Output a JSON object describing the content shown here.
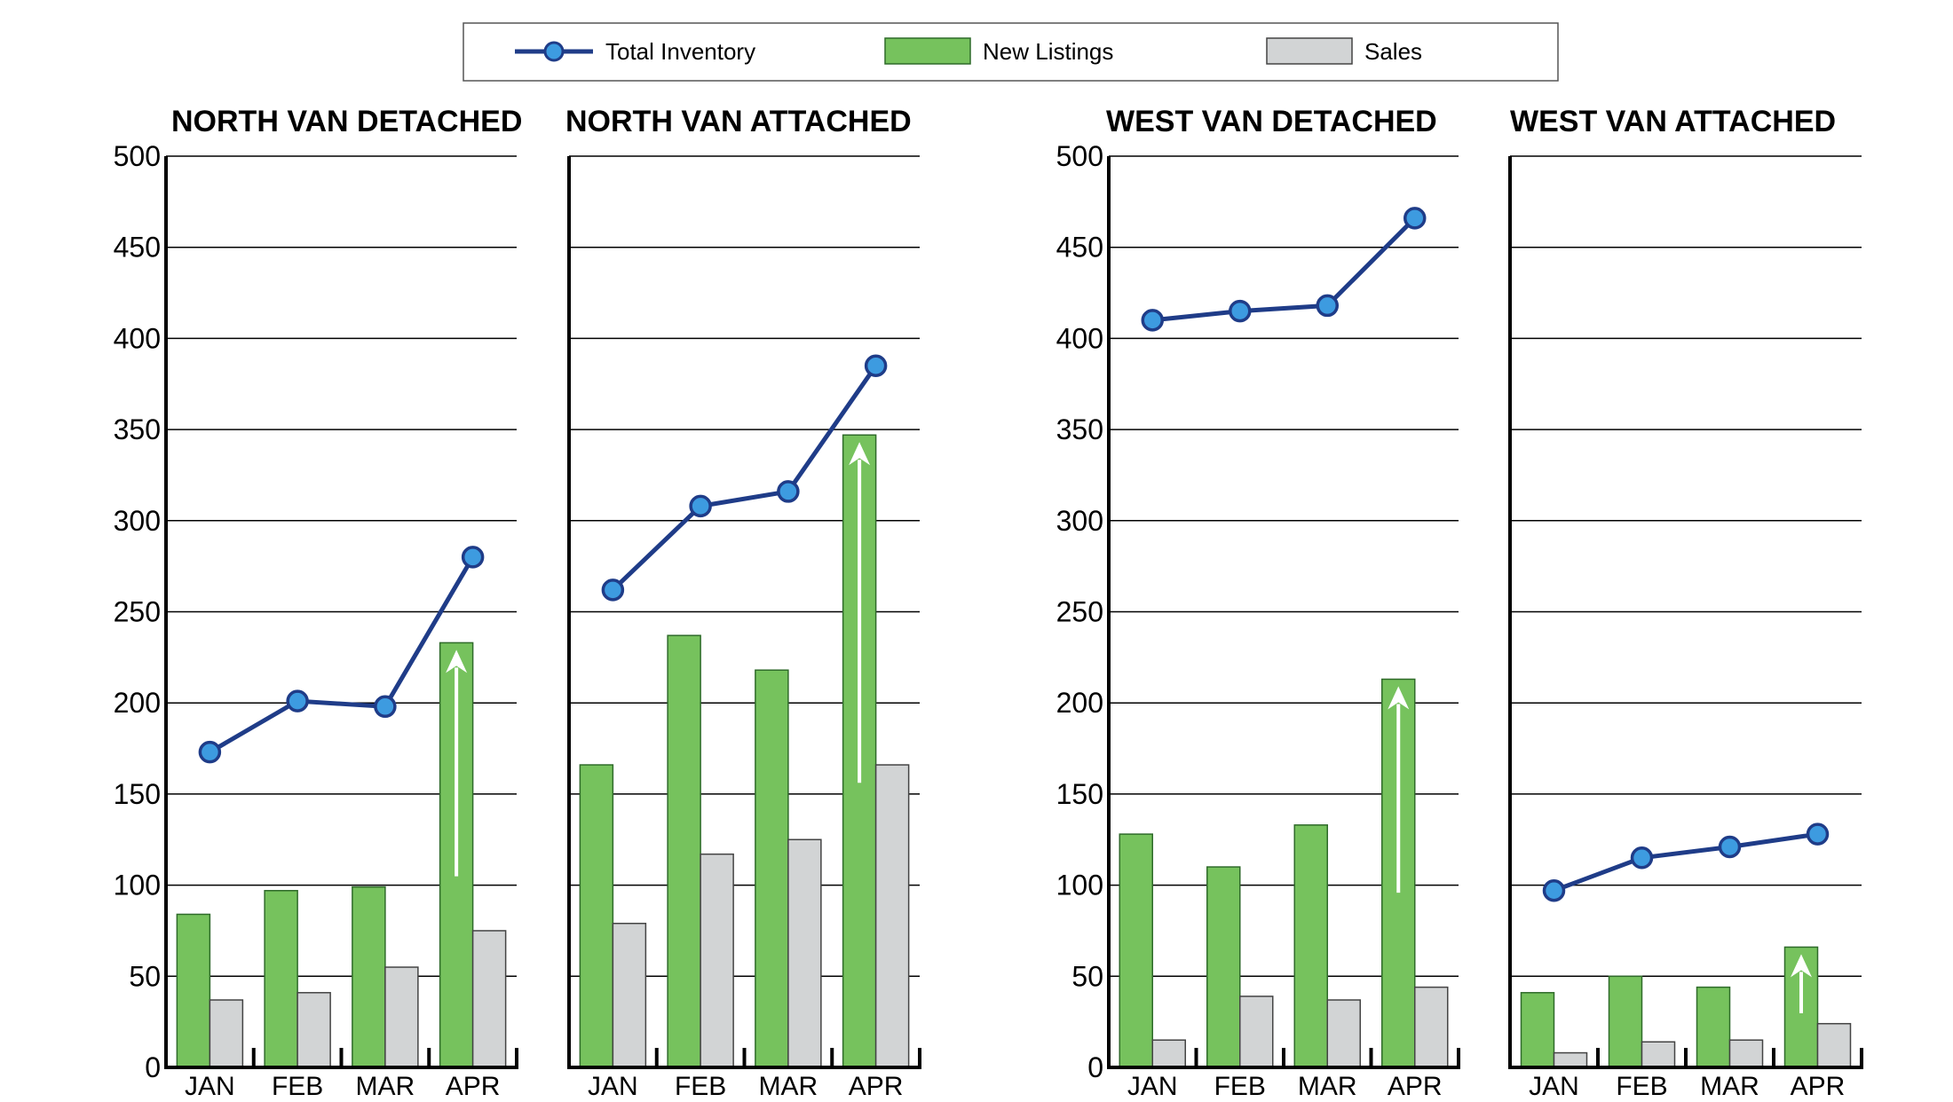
{
  "chart_data": {
    "type": "bar+line",
    "legend": {
      "placement": "top-center",
      "entries": [
        "Total Inventory",
        "New Listings",
        "Sales"
      ]
    },
    "ylim": [
      0,
      500
    ],
    "yticks": [
      "0",
      "50",
      "100",
      "150",
      "200",
      "250",
      "300",
      "350",
      "400",
      "450",
      "500"
    ],
    "grid": true,
    "categories": [
      "JAN",
      "FEB",
      "MAR",
      "APR"
    ],
    "colors": {
      "inventory_line": "#1f3c88",
      "inventory_marker": "#3d9be0",
      "new_listings": "#76c25d",
      "sales": "#d2d4d5"
    },
    "panels": [
      {
        "title": "NORTH VAN DETACHED",
        "series": [
          {
            "name": "Total Inventory",
            "values": [
              173,
              201,
              198,
              280
            ]
          },
          {
            "name": "New Listings",
            "values": [
              84,
              97,
              99,
              233
            ]
          },
          {
            "name": "Sales",
            "values": [
              37,
              41,
              55,
              75
            ]
          }
        ]
      },
      {
        "title": "NORTH VAN ATTACHED",
        "series": [
          {
            "name": "Total Inventory",
            "values": [
              262,
              308,
              316,
              385
            ]
          },
          {
            "name": "New Listings",
            "values": [
              166,
              237,
              218,
              347
            ]
          },
          {
            "name": "Sales",
            "values": [
              79,
              117,
              125,
              166
            ]
          }
        ]
      },
      {
        "title": "WEST VAN DETACHED",
        "series": [
          {
            "name": "Total Inventory",
            "values": [
              410,
              415,
              418,
              466
            ]
          },
          {
            "name": "New Listings",
            "values": [
              128,
              110,
              133,
              213
            ]
          },
          {
            "name": "Sales",
            "values": [
              15,
              39,
              37,
              44
            ]
          }
        ]
      },
      {
        "title": "WEST VAN ATTACHED",
        "series": [
          {
            "name": "Total Inventory",
            "values": [
              97,
              115,
              121,
              128
            ]
          },
          {
            "name": "New Listings",
            "values": [
              41,
              50,
              44,
              66
            ]
          },
          {
            "name": "Sales",
            "values": [
              8,
              14,
              15,
              24
            ]
          }
        ]
      }
    ]
  }
}
